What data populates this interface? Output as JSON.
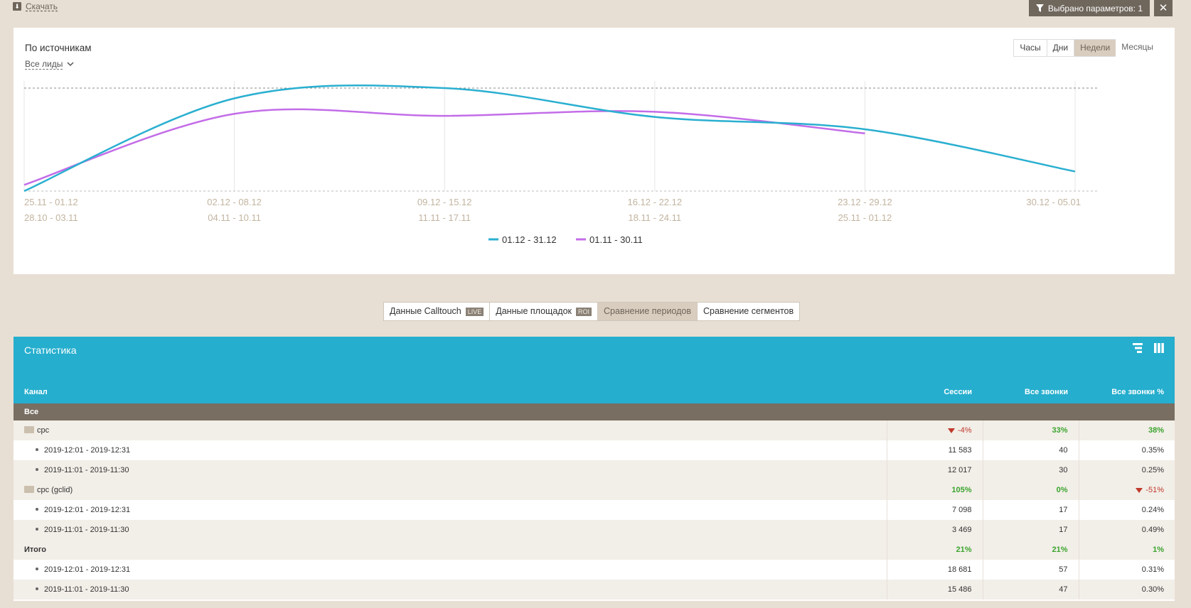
{
  "toolbar": {
    "download_label": "Скачать",
    "filter_label": "Выбрано параметров: 1",
    "close_glyph": "✕"
  },
  "chart_panel": {
    "title": "По источникам",
    "leads_filter": "Все лиды",
    "granularity": [
      "Часы",
      "Дни",
      "Недели",
      "Месяцы"
    ],
    "granularity_active": "Недели"
  },
  "chart_data": {
    "type": "line",
    "categories_primary": [
      "25.11 - 01.12",
      "02.12 - 08.12",
      "09.12 - 15.12",
      "16.12 - 22.12",
      "23.12 - 29.12",
      "30.12 - 05.01"
    ],
    "categories_secondary": [
      "28.10 - 03.11",
      "04.11 - 10.11",
      "11.11 - 17.11",
      "18.11 - 24.11",
      "25.11 - 01.12"
    ],
    "series": [
      {
        "name": "01.12 - 31.12",
        "color": "#2aafd0",
        "values": [
          0,
          0.9,
          1.0,
          0.72,
          0.6,
          0.19
        ]
      },
      {
        "name": "01.11 - 30.11",
        "color": "#c36de8",
        "values": [
          0.06,
          0.75,
          0.73,
          0.77,
          0.56
        ]
      }
    ]
  },
  "modes": {
    "calltouch": "Данные Calltouch",
    "calltouch_tag": "LIVE",
    "platforms": "Данные площадок",
    "platforms_tag": "ROI",
    "periods": "Сравнение периодов",
    "segments": "Сравнение сегментов"
  },
  "stats": {
    "title": "Статистика",
    "columns": {
      "channel": "Канал",
      "sessions": "Сессии",
      "calls": "Все звонки",
      "calls_pct": "Все звонки %"
    },
    "all_row": "Все",
    "groups": [
      {
        "name": "cpc",
        "sessions": "-4%",
        "calls": "33%",
        "calls_pct": "38%",
        "rows": [
          {
            "period": "2019-12:01 - 2019-12:31",
            "sessions": "11 583",
            "calls": "40",
            "calls_pct": "0.35%"
          },
          {
            "period": "2019-11:01 - 2019-11:30",
            "sessions": "12 017",
            "calls": "30",
            "calls_pct": "0.25%"
          }
        ]
      },
      {
        "name": "cpc (gclid)",
        "sessions": "105%",
        "calls": "0%",
        "calls_pct": "-51%",
        "rows": [
          {
            "period": "2019-12:01 - 2019-12:31",
            "sessions": "7 098",
            "calls": "17",
            "calls_pct": "0.24%"
          },
          {
            "period": "2019-11:01 - 2019-11:30",
            "sessions": "3 469",
            "calls": "17",
            "calls_pct": "0.49%"
          }
        ]
      }
    ],
    "total": {
      "name": "Итого",
      "sessions": "21%",
      "calls": "21%",
      "calls_pct": "1%",
      "rows": [
        {
          "period": "2019-12:01 - 2019-12:31",
          "sessions": "18 681",
          "calls": "57",
          "calls_pct": "0.31%"
        },
        {
          "period": "2019-11:01 - 2019-11:30",
          "sessions": "15 486",
          "calls": "47",
          "calls_pct": "0.30%"
        }
      ]
    }
  }
}
